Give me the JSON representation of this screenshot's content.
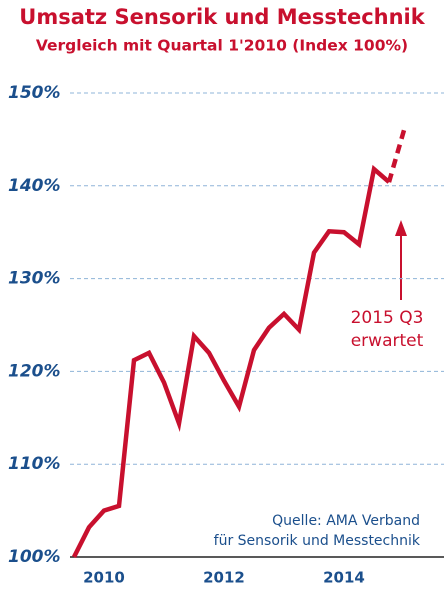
{
  "chart_data": {
    "type": "line",
    "title": "Umsatz Sensorik und Messtechnik",
    "subtitle": "Vergleich mit Quartal 1'2010 (Index 100%)",
    "x": [
      2010,
      2010.25,
      2010.5,
      2010.75,
      2011,
      2011.25,
      2011.5,
      2011.75,
      2012,
      2012.25,
      2012.5,
      2012.75,
      2013,
      2013.25,
      2013.5,
      2013.75,
      2014,
      2014.25,
      2014.5,
      2014.75,
      2015,
      2015.25,
      2015.5
    ],
    "series": [
      {
        "color": "#c8102e",
        "dash": false,
        "values": [
          100,
          103.2,
          105,
          105.5,
          121.2,
          122,
          118.8,
          114.4,
          123.8,
          122,
          119,
          116.2,
          122.3,
          124.7,
          126.2,
          124.5,
          132.8,
          135.1,
          135,
          133.7,
          141.8,
          140.4,
          null
        ]
      },
      {
        "color": "#c8102e",
        "dash": true,
        "values": [
          null,
          null,
          null,
          null,
          null,
          null,
          null,
          null,
          null,
          null,
          null,
          null,
          null,
          null,
          null,
          null,
          null,
          null,
          null,
          null,
          null,
          140.4,
          146
        ]
      }
    ],
    "xlim": [
      2010,
      2016
    ],
    "xticks": [
      {
        "value": 2010.5,
        "label": "2010"
      },
      {
        "value": 2012.5,
        "label": "2012"
      },
      {
        "value": 2014.5,
        "label": "2014"
      }
    ],
    "ylim": [
      100,
      150
    ],
    "yticks": [
      {
        "value": 100,
        "label": "100%"
      },
      {
        "value": 110,
        "label": "110%"
      },
      {
        "value": 120,
        "label": "120%"
      },
      {
        "value": 130,
        "label": "130%"
      },
      {
        "value": 140,
        "label": "140%"
      },
      {
        "value": 150,
        "label": "150%"
      }
    ],
    "grid": true,
    "annotations": [
      "2015 Q3",
      "erwartet"
    ],
    "source": [
      "Quelle: AMA Verband",
      "für Sensorik und Messtechnik"
    ]
  }
}
